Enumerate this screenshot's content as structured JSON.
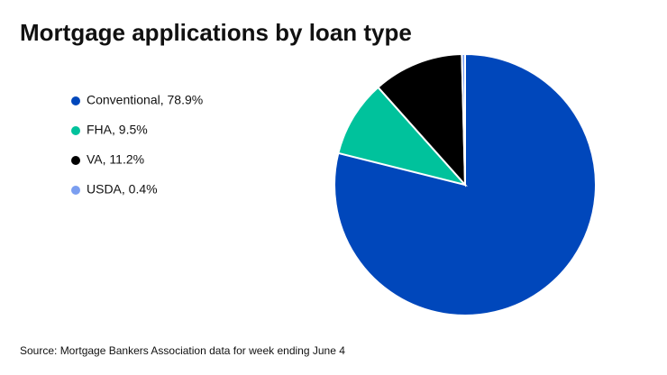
{
  "chart_data": {
    "type": "pie",
    "title": "Mortgage applications by loan type",
    "categories": [
      "Conventional, 78.9%",
      "FHA, 9.5%",
      "VA, 11.2%",
      "USDA, 0.4%"
    ],
    "values": [
      78.9,
      9.5,
      11.2,
      0.4
    ],
    "colors": [
      "#0047bb",
      "#00c29c",
      "#000000",
      "#7b9ef0"
    ],
    "source": "Source: Mortgage Bankers Association data for week ending June 4"
  }
}
